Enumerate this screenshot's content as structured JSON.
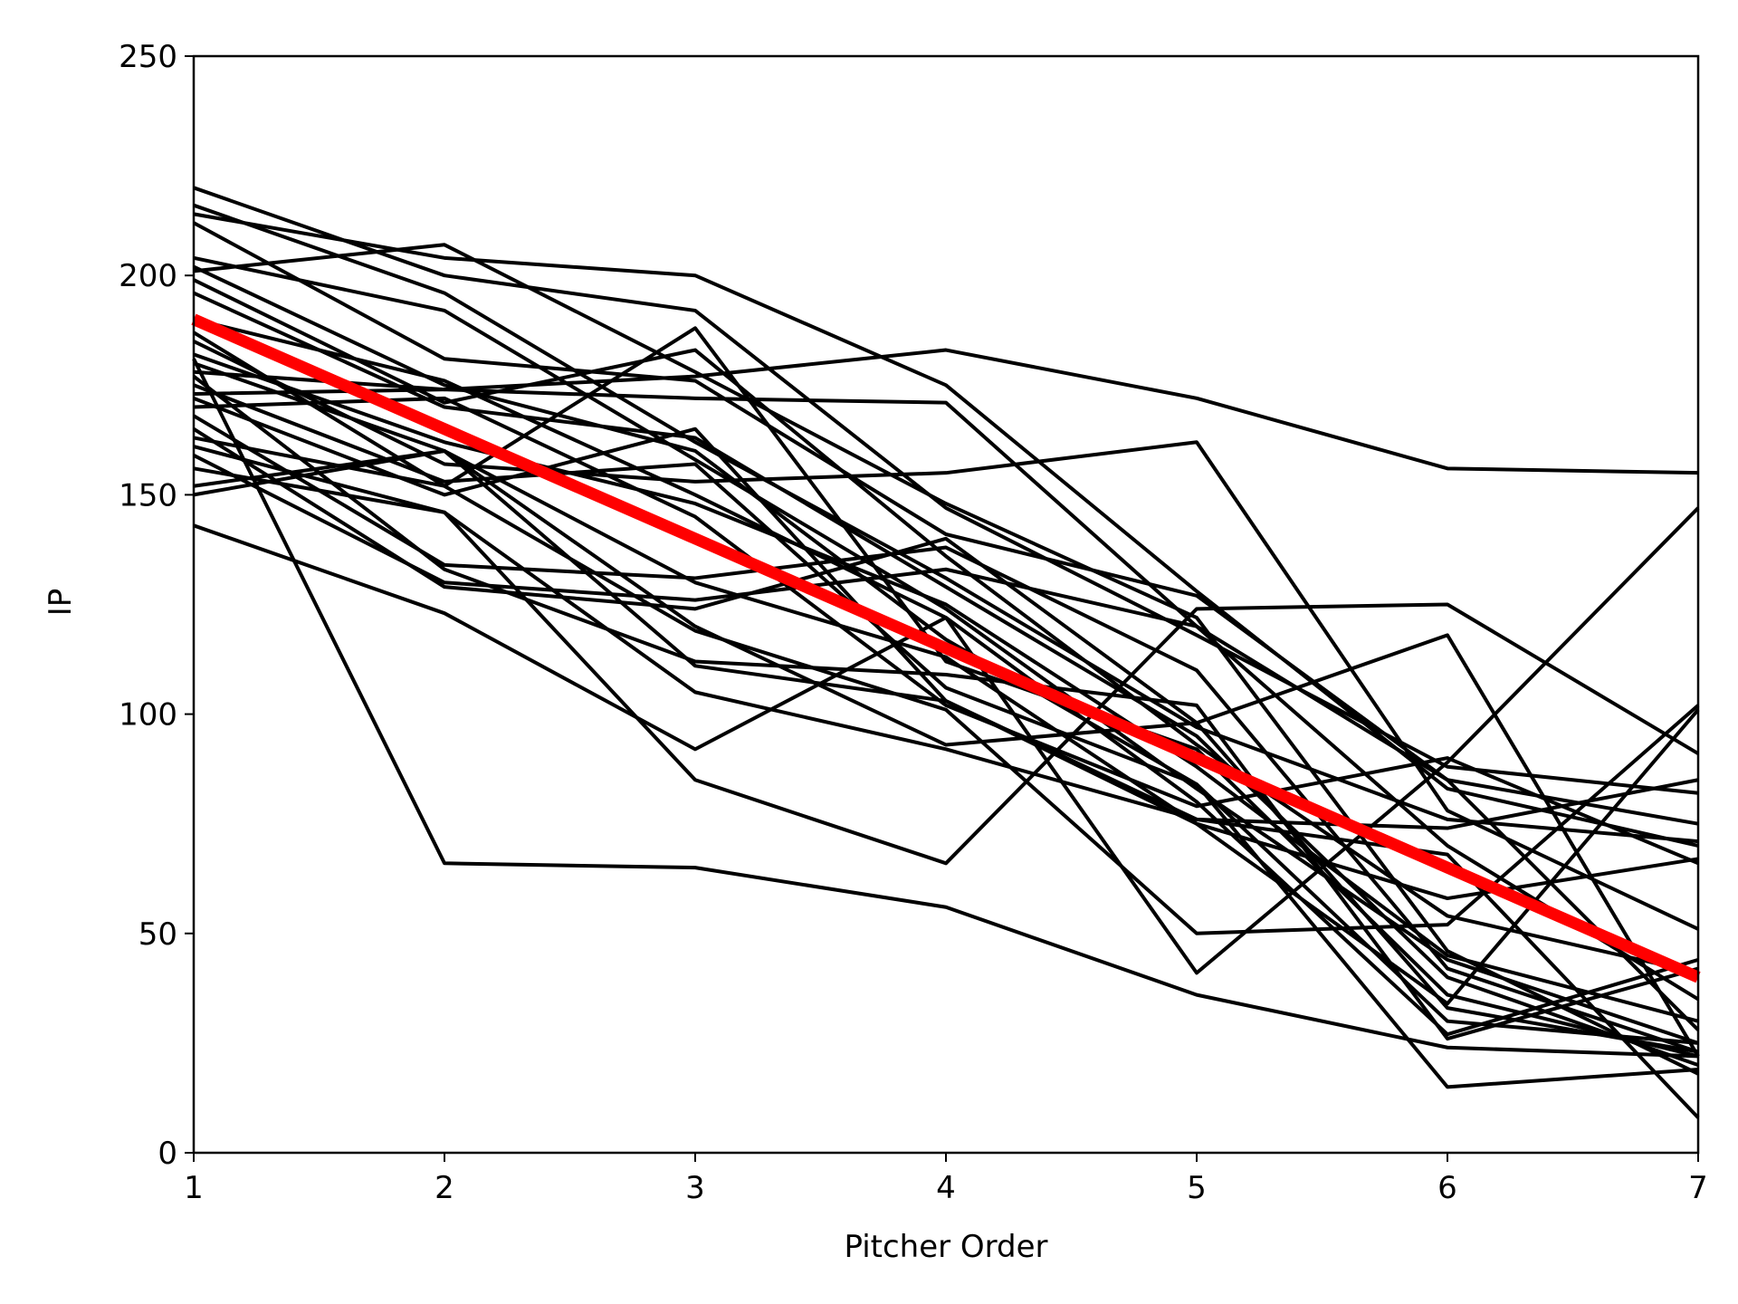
{
  "chart_data": {
    "type": "line",
    "xlabel": "Pitcher Order",
    "ylabel": "IP",
    "xlim": [
      1,
      7
    ],
    "ylim": [
      0,
      250
    ],
    "x": [
      1,
      2,
      3,
      4,
      5,
      6,
      7
    ],
    "xticks": [
      "1",
      "2",
      "3",
      "4",
      "5",
      "6",
      "7"
    ],
    "yticks": [
      "0",
      "50",
      "100",
      "150",
      "200",
      "250"
    ],
    "grid": false,
    "legend": "none",
    "colors": {
      "series": "#000000",
      "average": "#ff0000",
      "axes": "#000000"
    },
    "series": [
      {
        "values": [
          220,
          200,
          192,
          147,
          118,
          88,
          82
        ]
      },
      {
        "values": [
          216,
          196,
          162,
          131,
          97,
          76,
          71
        ]
      },
      {
        "values": [
          214,
          204,
          200,
          175,
          128,
          83,
          70
        ]
      },
      {
        "values": [
          212,
          181,
          176,
          141,
          127,
          85,
          75
        ]
      },
      {
        "values": [
          204,
          192,
          158,
          124,
          83,
          44,
          25
        ]
      },
      {
        "values": [
          201,
          207,
          178,
          148,
          122,
          46,
          18
        ]
      },
      {
        "values": [
          199,
          171,
          183,
          136,
          93,
          54,
          41
        ]
      },
      {
        "values": [
          196,
          170,
          163,
          129,
          95,
          40,
          20
        ]
      },
      {
        "values": [
          190,
          176,
          150,
          122,
          80,
          27,
          44
        ]
      },
      {
        "values": [
          187,
          152,
          188,
          112,
          92,
          36,
          22
        ]
      },
      {
        "values": [
          185,
          157,
          153,
          155,
          162,
          78,
          51
        ]
      },
      {
        "values": [
          182,
          162,
          148,
          125,
          88,
          45,
          30
        ]
      },
      {
        "values": [
          180,
          160,
          130,
          113,
          75,
          58,
          67
        ]
      },
      {
        "values": [
          178,
          174,
          172,
          171,
          120,
          70,
          35
        ]
      },
      {
        "values": [
          175,
          153,
          157,
          106,
          84,
          30,
          25
        ]
      },
      {
        "values": [
          173,
          174,
          177,
          183,
          172,
          156,
          155
        ]
      },
      {
        "values": [
          170,
          172,
          145,
          102,
          79,
          90,
          66
        ]
      },
      {
        "values": [
          168,
          134,
          131,
          138,
          110,
          42,
          23
        ]
      },
      {
        "values": [
          163,
          152,
          119,
          101,
          50,
          52,
          102
        ]
      },
      {
        "values": [
          161,
          146,
          85,
          66,
          124,
          125,
          91
        ]
      },
      {
        "values": [
          159,
          130,
          126,
          133,
          120,
          85,
          28
        ]
      },
      {
        "values": [
          156,
          146,
          105,
          92,
          76,
          74,
          85
        ]
      },
      {
        "values": [
          152,
          160,
          120,
          93,
          98,
          118,
          22
        ]
      },
      {
        "values": [
          150,
          160,
          111,
          103,
          76,
          68,
          8
        ]
      },
      {
        "values": [
          177,
          133,
          112,
          109,
          102,
          26,
          42
        ]
      },
      {
        "values": [
          165,
          129,
          124,
          140,
          98,
          33,
          23
        ]
      },
      {
        "values": [
          172,
          150,
          165,
          103,
          75,
          34,
          101
        ]
      },
      {
        "values": [
          181,
          66,
          65,
          56,
          36,
          24,
          22
        ]
      },
      {
        "values": [
          202,
          175,
          160,
          117,
          84,
          15,
          19
        ]
      },
      {
        "values": [
          143,
          123,
          92,
          122,
          41,
          89,
          147
        ]
      }
    ],
    "average": {
      "values": [
        190,
        165,
        140,
        115,
        90,
        65,
        40
      ]
    }
  }
}
